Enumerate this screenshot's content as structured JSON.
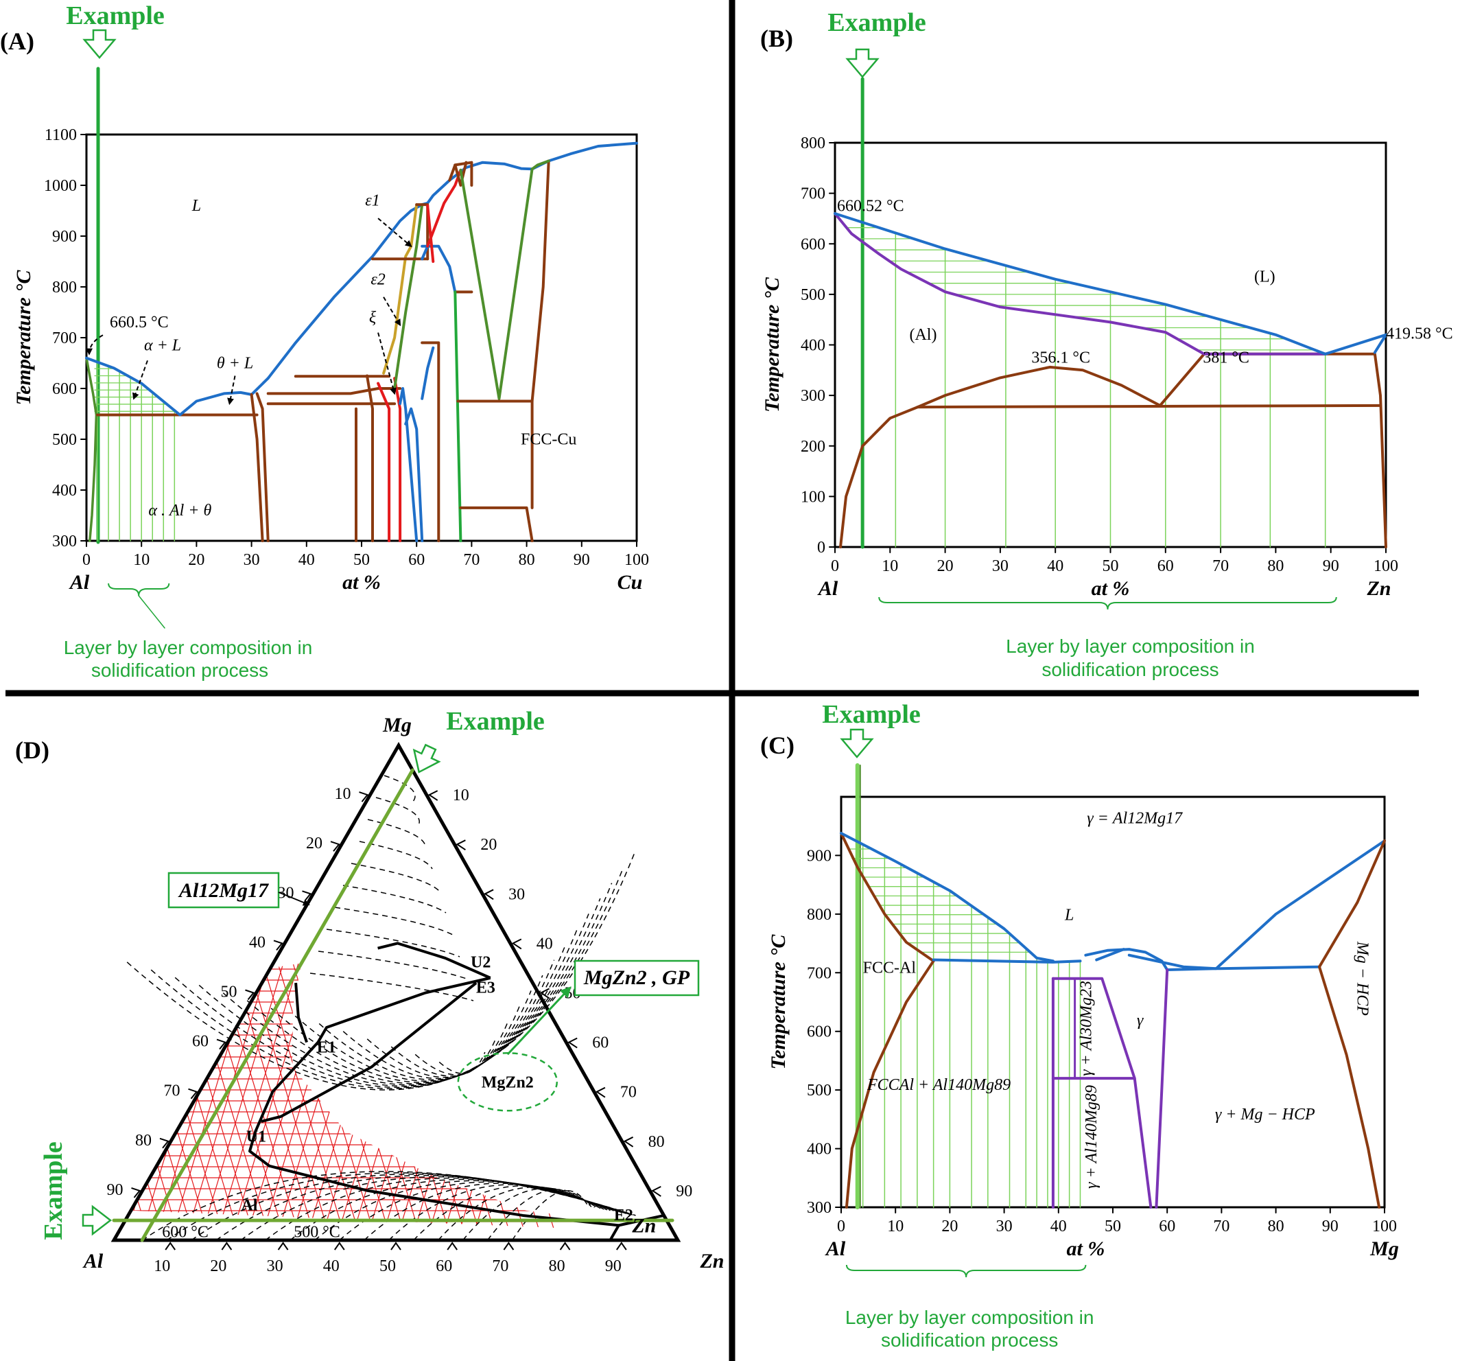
{
  "chart_data": [
    {
      "panel": "(A)",
      "type": "line",
      "example_label": "Example",
      "ylabel": "Temperature °C",
      "xlabel": "at %",
      "x_left_label": "Al",
      "x_right_label": "Cu",
      "xlim": [
        0,
        100
      ],
      "ylim": [
        300,
        1100
      ],
      "xticks": [
        "0",
        "10",
        "20",
        "30",
        "40",
        "50",
        "60",
        "70",
        "80",
        "90",
        "100"
      ],
      "yticks": [
        "300",
        "400",
        "500",
        "600",
        "700",
        "800",
        "900",
        "1000",
        "1100"
      ],
      "annotations": [
        "L",
        "660.5 °C",
        "α + L",
        "θ + L",
        "α . Al + θ",
        "FCC-Cu",
        "ε1",
        "ε2",
        "ξ"
      ],
      "note": "Layer by layer composition in solidification process",
      "example_x": 2,
      "liquidus": [
        [
          0,
          660
        ],
        [
          5,
          640
        ],
        [
          10,
          610
        ],
        [
          17,
          548
        ],
        [
          20,
          575
        ],
        [
          25,
          590
        ],
        [
          28,
          592
        ],
        [
          30,
          588
        ],
        [
          33,
          620
        ],
        [
          38,
          690
        ],
        [
          45,
          780
        ],
        [
          52,
          860
        ],
        [
          57,
          930
        ],
        [
          59,
          950
        ],
        [
          61,
          962
        ],
        [
          62,
          965
        ],
        [
          63,
          980
        ],
        [
          66,
          1010
        ],
        [
          69,
          1035
        ],
        [
          72,
          1045
        ],
        [
          76,
          1042
        ],
        [
          79,
          1033
        ],
        [
          81,
          1032
        ],
        [
          84,
          1048
        ],
        [
          88,
          1062
        ],
        [
          93,
          1077
        ],
        [
          100,
          1083
        ]
      ],
      "eutectic_T": 548,
      "eutectic_x": [
        2,
        31
      ]
    },
    {
      "panel": "(B)",
      "type": "line",
      "example_label": "Example",
      "ylabel": "Temperature °C",
      "xlabel": "at %",
      "x_left_label": "Al",
      "x_right_label": "Zn",
      "xlim": [
        0,
        100
      ],
      "ylim": [
        0,
        800
      ],
      "xticks": [
        "0",
        "10",
        "20",
        "30",
        "40",
        "50",
        "60",
        "70",
        "80",
        "90",
        "100"
      ],
      "yticks": [
        "0",
        "100",
        "200",
        "300",
        "400",
        "500",
        "600",
        "700",
        "800"
      ],
      "annotations": [
        "660.52 °C",
        "(L)",
        "(Al)",
        "356.1 °C",
        "381 °C",
        "419.58 °C"
      ],
      "note": "Layer by layer composition in solidification process",
      "example_x": 5,
      "liquidus": [
        [
          0,
          660
        ],
        [
          20,
          590
        ],
        [
          40,
          530
        ],
        [
          60,
          480
        ],
        [
          70,
          450
        ],
        [
          80,
          420
        ],
        [
          89,
          382
        ],
        [
          100,
          420
        ]
      ],
      "solidus": [
        [
          0,
          660
        ],
        [
          3,
          620
        ],
        [
          8,
          580
        ],
        [
          12,
          550
        ],
        [
          20,
          505
        ],
        [
          30,
          475
        ],
        [
          40,
          460
        ],
        [
          50,
          445
        ],
        [
          60,
          425
        ],
        [
          67,
          382
        ],
        [
          89,
          382
        ]
      ],
      "miscibility_gap": [
        [
          15,
          277
        ],
        [
          20,
          300
        ],
        [
          30,
          335
        ],
        [
          39,
          356
        ],
        [
          45,
          350
        ],
        [
          52,
          320
        ],
        [
          59,
          280
        ],
        [
          67,
          382
        ]
      ],
      "solvus": [
        [
          1,
          0
        ],
        [
          2,
          100
        ],
        [
          5,
          200
        ],
        [
          10,
          255
        ],
        [
          15,
          277
        ]
      ],
      "eutectoid_T": 277
    },
    {
      "panel": "(C)",
      "type": "line",
      "example_label": "Example",
      "ylabel": "Temperature °C",
      "xlabel": "at %",
      "x_left_label": "Al",
      "x_right_label": "Mg",
      "xlim": [
        0,
        100
      ],
      "ylim": [
        300,
        1000
      ],
      "xticks": [
        "0",
        "10",
        "20",
        "30",
        "40",
        "50",
        "60",
        "70",
        "80",
        "90",
        "100"
      ],
      "yticks": [
        "300",
        "400",
        "500",
        "600",
        "700",
        "800",
        "900"
      ],
      "annotations": [
        "γ = Al12Mg17",
        "L",
        "FCC-Al",
        "Mg − HCP",
        "γ",
        "γ + Al30Mg23",
        "FCCAl + Al140Mg89",
        "γ + Al140Mg89",
        "γ + Mg − HCP"
      ],
      "note": "Layer by layer composition in solidification process",
      "example_x": 3,
      "liquidus": [
        [
          0,
          938
        ],
        [
          10,
          890
        ],
        [
          20,
          840
        ],
        [
          30,
          775
        ],
        [
          36,
          725
        ],
        [
          39,
          720
        ]
      ],
      "solidus": [
        [
          0,
          938
        ],
        [
          3,
          880
        ],
        [
          8,
          800
        ],
        [
          12,
          752
        ],
        [
          17,
          720
        ]
      ],
      "eutectic_T": 720
    },
    {
      "panel": "(D)",
      "type": "ternary",
      "example_label": "Example",
      "corners": [
        "Mg",
        "Al",
        "Zn"
      ],
      "ticks": [
        "10",
        "20",
        "30",
        "40",
        "50",
        "60",
        "70",
        "80",
        "90"
      ],
      "annotations": [
        "U2",
        "E3",
        "E1",
        "U1",
        "E2",
        "Al",
        "Zn",
        "600 °C",
        "500 °C",
        "MgZn2"
      ],
      "callouts": [
        "Al12Mg17",
        "MgZn2 , GP"
      ]
    }
  ]
}
